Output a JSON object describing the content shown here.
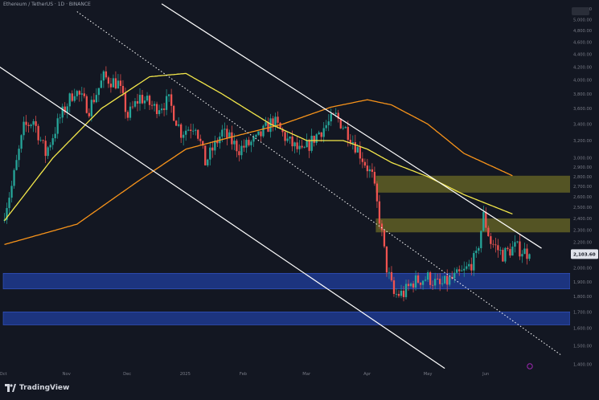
{
  "header": {
    "symbol_line": "Ethereum / TetherUS · 1D · BINANCE"
  },
  "footer": {
    "brand": "TradingView"
  },
  "colors": {
    "background": "#131722",
    "bull": "#26a69a",
    "bear": "#ef5350",
    "ma_fast": "#f3e74a",
    "ma_slow": "#f7931a",
    "channel": "#ffffff",
    "zone_yellow": "#6b6a26",
    "zone_blue": "#1f3a8f",
    "axis_text": "#787b86"
  },
  "chart_data": {
    "type": "candlestick",
    "title": "",
    "xlabel": "",
    "ylabel": "",
    "y_scale": "log",
    "ylim": [
      1350,
      5250
    ],
    "y_ticks": [
      "5,200.00",
      "5,000.00",
      "4,800.00",
      "4,600.00",
      "4,400.00",
      "4,200.00",
      "4,000.00",
      "3,800.00",
      "3,600.00",
      "3,400.00",
      "3,200.00",
      "3,000.00",
      "2,900.00",
      "2,800.00",
      "2,700.00",
      "2,600.00",
      "2,500.00",
      "2,400.00",
      "2,300.00",
      "2,200.00",
      "2,100.00",
      "2,000.00",
      "1,900.00",
      "1,800.00",
      "1,700.00",
      "1,600.00",
      "1,500.00",
      "1,400.00"
    ],
    "x_ticks": [
      {
        "label": "Oct",
        "frac": 0.0
      },
      {
        "label": "Nov",
        "frac": 0.12
      },
      {
        "label": "Dec",
        "frac": 0.235
      },
      {
        "label": "2025",
        "frac": 0.345
      },
      {
        "label": "Feb",
        "frac": 0.455
      },
      {
        "label": "Mar",
        "frac": 0.575
      },
      {
        "label": "Apr",
        "frac": 0.69
      },
      {
        "label": "May",
        "frac": 0.805
      },
      {
        "label": "Jun",
        "frac": 0.915
      }
    ],
    "price_tag": "2,103.60",
    "last_close": 2104,
    "candles": {
      "count": 218,
      "anchors": [
        [
          0,
          2380
        ],
        [
          4,
          2700
        ],
        [
          9,
          3350
        ],
        [
          13,
          3450
        ],
        [
          18,
          3050
        ],
        [
          24,
          3480
        ],
        [
          30,
          3860
        ],
        [
          36,
          3600
        ],
        [
          42,
          4040
        ],
        [
          48,
          3950
        ],
        [
          52,
          3500
        ],
        [
          57,
          3760
        ],
        [
          63,
          3610
        ],
        [
          69,
          3700
        ],
        [
          74,
          3300
        ],
        [
          80,
          3400
        ],
        [
          84,
          2950
        ],
        [
          91,
          3300
        ],
        [
          98,
          3100
        ],
        [
          105,
          3200
        ],
        [
          112,
          3450
        ],
        [
          118,
          3200
        ],
        [
          124,
          3050
        ],
        [
          131,
          3300
        ],
        [
          138,
          3500
        ],
        [
          143,
          3300
        ],
        [
          148,
          3050
        ],
        [
          153,
          2800
        ],
        [
          156,
          2400
        ],
        [
          159,
          2000
        ],
        [
          162,
          1810
        ],
        [
          166,
          1820
        ],
        [
          170,
          1900
        ],
        [
          176,
          1930
        ],
        [
          181,
          1870
        ],
        [
          186,
          1920
        ],
        [
          191,
          1970
        ],
        [
          196,
          2080
        ],
        [
          199,
          2420
        ],
        [
          202,
          2200
        ],
        [
          207,
          2100
        ],
        [
          212,
          2160
        ],
        [
          218,
          2104
        ]
      ]
    },
    "ma_fast": [
      [
        0,
        2380
      ],
      [
        20,
        3000
      ],
      [
        40,
        3600
      ],
      [
        60,
        4050
      ],
      [
        75,
        4100
      ],
      [
        90,
        3800
      ],
      [
        110,
        3400
      ],
      [
        125,
        3200
      ],
      [
        140,
        3200
      ],
      [
        150,
        3100
      ],
      [
        160,
        2950
      ],
      [
        175,
        2800
      ],
      [
        190,
        2620
      ],
      [
        210,
        2440
      ]
    ],
    "ma_slow": [
      [
        0,
        2180
      ],
      [
        30,
        2350
      ],
      [
        55,
        2750
      ],
      [
        75,
        3100
      ],
      [
        95,
        3250
      ],
      [
        115,
        3400
      ],
      [
        135,
        3620
      ],
      [
        150,
        3720
      ],
      [
        160,
        3650
      ],
      [
        175,
        3400
      ],
      [
        190,
        3050
      ],
      [
        210,
        2810
      ]
    ],
    "channel_lines": [
      {
        "style": "solid",
        "p1": [
          65,
          5300
        ],
        "p2": [
          222,
          2150
        ]
      },
      {
        "style": "solid",
        "p1": [
          -2,
          4200
        ],
        "p2": [
          182,
          1380
        ]
      },
      {
        "style": "dotted",
        "p1": [
          30,
          5150
        ],
        "p2": [
          230,
          1450
        ]
      }
    ],
    "zones": [
      {
        "color": "yellow",
        "x_start": 154,
        "y_top": 2810,
        "y_bottom": 2640
      },
      {
        "color": "yellow",
        "x_start": 154,
        "y_top": 2400,
        "y_bottom": 2280
      },
      {
        "color": "blue",
        "x_start": 0,
        "y_top": 1960,
        "y_bottom": 1850
      },
      {
        "color": "blue",
        "x_start": 0,
        "y_top": 1700,
        "y_bottom": 1620
      }
    ]
  }
}
